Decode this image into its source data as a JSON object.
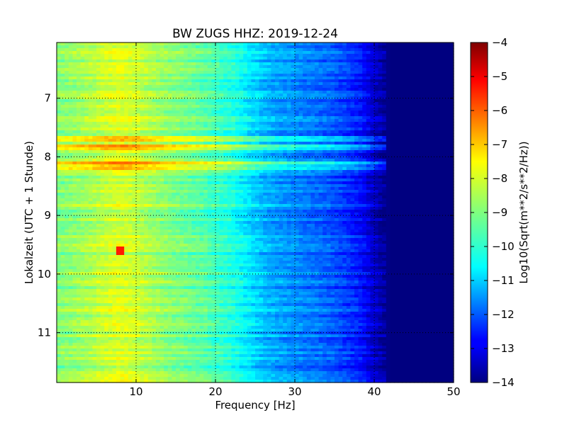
{
  "chart_data": {
    "type": "heatmap",
    "title": "BW ZUGS HHZ: 2019-12-24",
    "xlabel": "Frequency [Hz]",
    "ylabel": "Lokalzeit (UTC + 1 Stunde)",
    "colorbar_label": "Log10(Sqrt(m**2/s**2/Hz))",
    "x_range": [
      0,
      50
    ],
    "y_range": [
      6.05,
      11.85
    ],
    "y_inverted": true,
    "x_ticks": [
      10,
      20,
      30,
      40,
      50
    ],
    "y_ticks": [
      7,
      8,
      9,
      10,
      11
    ],
    "color_range": [
      -14,
      -4
    ],
    "colorbar_ticks": [
      -4,
      -5,
      -6,
      -7,
      -8,
      -9,
      -10,
      -11,
      -12,
      -13,
      -14
    ],
    "colormap": "jet",
    "grid": true,
    "frequency_profile_hz": [
      0,
      2,
      4,
      6,
      8,
      10,
      12,
      14,
      16,
      18,
      20,
      22,
      24,
      26,
      28,
      30,
      32,
      34,
      36,
      38,
      40,
      42,
      44,
      46,
      48,
      50
    ],
    "frequency_profile_level": [
      -9.0,
      -8.8,
      -8.6,
      -8.3,
      -8.1,
      -8.3,
      -8.6,
      -8.9,
      -9.1,
      -9.3,
      -9.6,
      -9.9,
      -10.4,
      -10.9,
      -11.2,
      -11.4,
      -11.6,
      -11.8,
      -12.1,
      -12.5,
      -13.3,
      -14.0,
      -14.0,
      -14.0,
      -14.0,
      -14.0
    ],
    "notable_bands": [
      {
        "time": 7.7,
        "level_offset": 1.3,
        "max_hz": 43
      },
      {
        "time": 7.85,
        "level_offset": 1.2,
        "max_hz": 43
      },
      {
        "time": 8.12,
        "level_offset": 1.5,
        "max_hz": 43
      },
      {
        "time": 8.18,
        "level_offset": 1.2,
        "max_hz": 43
      }
    ],
    "hot_spot": {
      "hz": 8,
      "time": 9.6,
      "level": -5.5
    }
  }
}
